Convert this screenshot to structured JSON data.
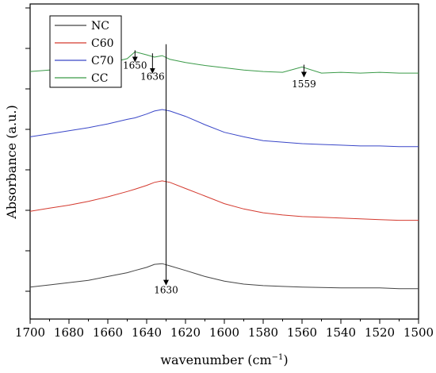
{
  "chart_data": {
    "type": "line",
    "title": "",
    "xlabel": "wavenumber (cm",
    "xlabel_sup": "−1",
    "xlabel_close": ")",
    "ylabel": "Absorbance (a.u.)",
    "xlim": [
      1700,
      1500
    ],
    "x_reversed": true,
    "y_ticks_labeled": false,
    "grid": false,
    "legend_position": "top-left",
    "x_ticks": [
      1700,
      1680,
      1660,
      1640,
      1620,
      1600,
      1580,
      1560,
      1540,
      1520,
      1500
    ],
    "y_tick_count": 8,
    "x": [
      1700,
      1690,
      1680,
      1670,
      1660,
      1650,
      1646,
      1640,
      1636,
      1632,
      1628,
      1620,
      1610,
      1600,
      1590,
      1580,
      1570,
      1560,
      1550,
      1540,
      1530,
      1520,
      1510,
      1500
    ],
    "series": [
      {
        "name": "NC",
        "color": "#444444",
        "values": [
          0.02,
          0.05,
          0.08,
          0.11,
          0.16,
          0.21,
          0.24,
          0.28,
          0.32,
          0.33,
          0.3,
          0.24,
          0.16,
          0.1,
          0.06,
          0.04,
          0.03,
          0.02,
          0.015,
          0.01,
          0.01,
          0.01,
          0.0,
          0.0
        ]
      },
      {
        "name": "C60",
        "color": "#d43a2f",
        "values": [
          1.02,
          1.06,
          1.1,
          1.15,
          1.21,
          1.28,
          1.31,
          1.36,
          1.4,
          1.42,
          1.4,
          1.32,
          1.22,
          1.12,
          1.05,
          1.0,
          0.97,
          0.95,
          0.94,
          0.93,
          0.92,
          0.91,
          0.9,
          0.9
        ]
      },
      {
        "name": "C70",
        "color": "#3a47c8",
        "values": [
          2.0,
          2.04,
          2.08,
          2.12,
          2.17,
          2.23,
          2.25,
          2.3,
          2.34,
          2.36,
          2.34,
          2.27,
          2.16,
          2.06,
          2.0,
          1.95,
          1.93,
          1.91,
          1.9,
          1.89,
          1.88,
          1.88,
          1.87,
          1.87
        ]
      },
      {
        "name": "CC",
        "color": "#3a9a48",
        "values": [
          2.86,
          2.88,
          2.9,
          2.93,
          2.97,
          3.03,
          3.12,
          3.08,
          3.05,
          3.07,
          3.02,
          2.98,
          2.94,
          2.91,
          2.88,
          2.86,
          2.85,
          2.92,
          2.84,
          2.85,
          2.84,
          2.85,
          2.84,
          2.84
        ]
      }
    ],
    "annotations": [
      {
        "label": "1650",
        "x": 1646,
        "series": "CC",
        "y_top": 3.14,
        "y_tip": 2.99,
        "label_y": 2.9
      },
      {
        "label": "1636",
        "x": 1637,
        "series": "CC",
        "y_top": 3.1,
        "y_tip": 2.84,
        "label_y": 2.75
      },
      {
        "label": "1559",
        "x": 1559,
        "series": "CC",
        "y_top": 2.95,
        "y_tip": 2.79,
        "label_y": 2.65
      },
      {
        "label": "1630",
        "x": 1630,
        "series": "NC",
        "y_top": 3.22,
        "y_tip": 0.05,
        "label_y": -0.06
      }
    ]
  }
}
